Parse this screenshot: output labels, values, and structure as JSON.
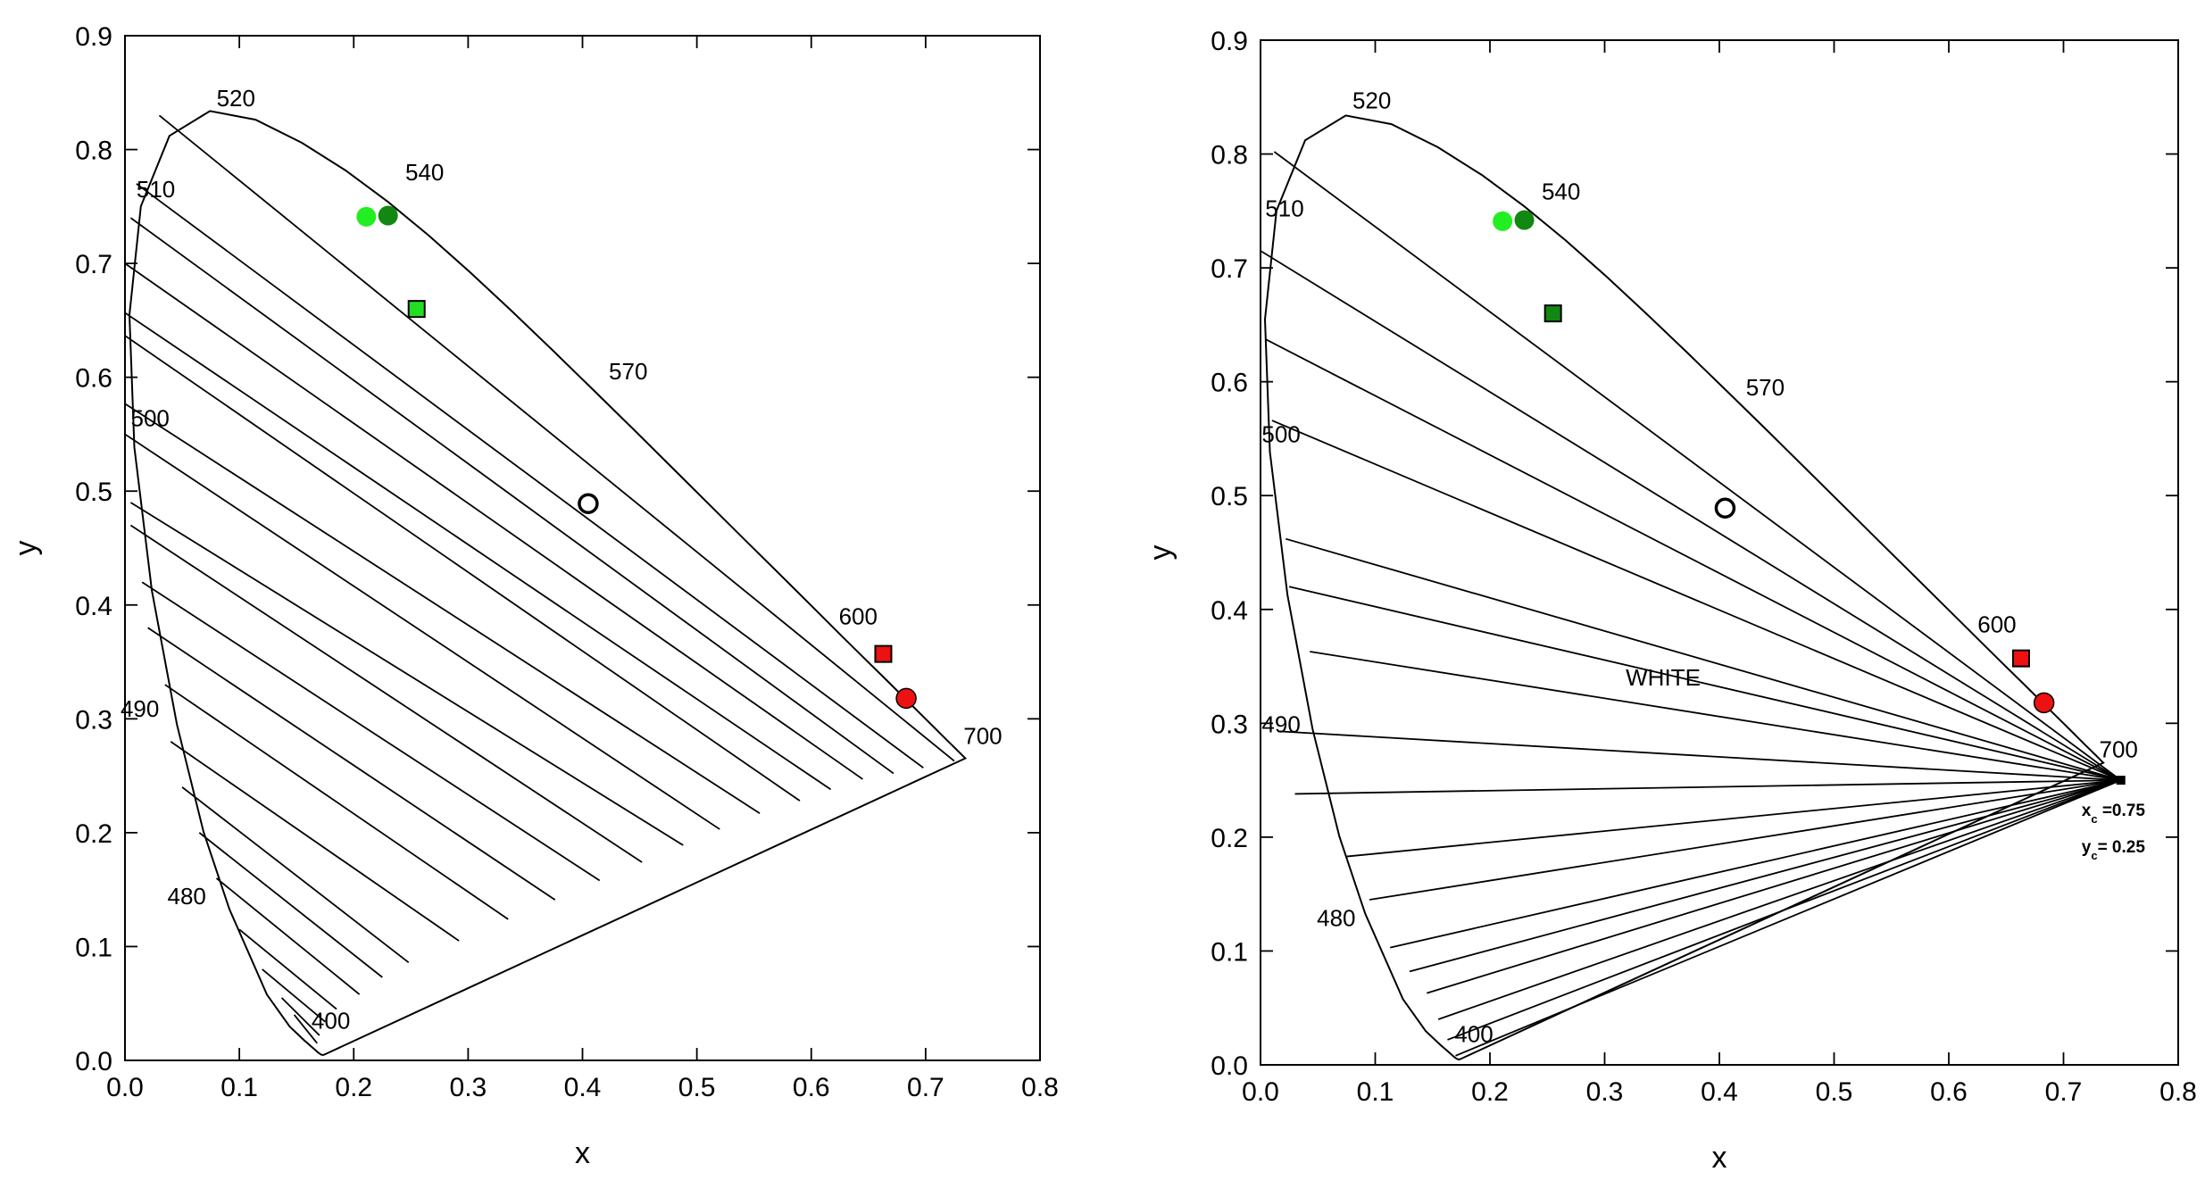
{
  "chart_data": [
    {
      "type": "scatter",
      "xlabel": "x",
      "ylabel": "y",
      "xlim": [
        0.0,
        0.8
      ],
      "ylim": [
        0.0,
        0.9
      ],
      "x_ticks": [
        "0.0",
        "0.1",
        "0.2",
        "0.3",
        "0.4",
        "0.5",
        "0.6",
        "0.7",
        "0.8"
      ],
      "y_ticks": [
        "0.0",
        "0.1",
        "0.2",
        "0.3",
        "0.4",
        "0.5",
        "0.6",
        "0.7",
        "0.8",
        "0.9"
      ],
      "locus": {
        "x": [
          0.1741,
          0.1738,
          0.1733,
          0.1726,
          0.1714,
          0.1689,
          0.1644,
          0.1566,
          0.144,
          0.1241,
          0.0913,
          0.0687,
          0.0454,
          0.0235,
          0.0082,
          0.0039,
          0.0139,
          0.0389,
          0.0743,
          0.1142,
          0.1547,
          0.1929,
          0.2296,
          0.2658,
          0.3016,
          0.3373,
          0.3731,
          0.4087,
          0.4441,
          0.4788,
          0.5125,
          0.5448,
          0.5752,
          0.6029,
          0.627,
          0.6482,
          0.6658,
          0.6801,
          0.6915,
          0.7006,
          0.7079,
          0.714,
          0.719,
          0.723,
          0.726,
          0.7283,
          0.73,
          0.7311,
          0.732,
          0.7327,
          0.7334,
          0.734,
          0.7344,
          0.7346,
          0.7347
        ],
        "y": [
          0.005,
          0.0049,
          0.0048,
          0.0048,
          0.0051,
          0.0069,
          0.0109,
          0.0177,
          0.0297,
          0.0578,
          0.1327,
          0.2007,
          0.295,
          0.4127,
          0.5384,
          0.6548,
          0.7502,
          0.812,
          0.8338,
          0.8262,
          0.8059,
          0.7816,
          0.7543,
          0.7243,
          0.6923,
          0.6589,
          0.6245,
          0.5896,
          0.5547,
          0.5202,
          0.4866,
          0.4544,
          0.4242,
          0.3965,
          0.3725,
          0.3514,
          0.334,
          0.3197,
          0.3083,
          0.2993,
          0.292,
          0.2859,
          0.2809,
          0.277,
          0.274,
          0.2717,
          0.27,
          0.2689,
          0.268,
          0.2673,
          0.2666,
          0.266,
          0.2656,
          0.2654,
          0.2653
        ]
      },
      "wavelength_labels": [
        {
          "text": "520",
          "x": 0.097,
          "y": 0.838
        },
        {
          "text": "540",
          "x": 0.262,
          "y": 0.773
        },
        {
          "text": "510",
          "x": 0.027,
          "y": 0.758
        },
        {
          "text": "570",
          "x": 0.44,
          "y": 0.598
        },
        {
          "text": "500",
          "x": 0.022,
          "y": 0.557
        },
        {
          "text": "600",
          "x": 0.641,
          "y": 0.383
        },
        {
          "text": "490",
          "x": 0.013,
          "y": 0.302
        },
        {
          "text": "700",
          "x": 0.75,
          "y": 0.278
        },
        {
          "text": "480",
          "x": 0.054,
          "y": 0.137
        },
        {
          "text": "400",
          "x": 0.18,
          "y": 0.028
        }
      ],
      "iso_lines": [
        [
          [
            0.03,
            0.83
          ],
          [
            0.725,
            0.263
          ]
        ],
        [
          [
            0.01,
            0.77
          ],
          [
            0.698,
            0.257
          ]
        ],
        [
          [
            0.005,
            0.74
          ],
          [
            0.672,
            0.252
          ]
        ],
        [
          [
            0.0,
            0.7
          ],
          [
            0.645,
            0.247
          ]
        ],
        [
          [
            -0.005,
            0.66
          ],
          [
            0.617,
            0.238
          ]
        ],
        [
          [
            -0.005,
            0.64
          ],
          [
            0.59,
            0.228
          ]
        ],
        [
          [
            -0.005,
            0.58
          ],
          [
            0.555,
            0.217
          ]
        ],
        [
          [
            0.0,
            0.55
          ],
          [
            0.52,
            0.203
          ]
        ],
        [
          [
            0.005,
            0.49
          ],
          [
            0.488,
            0.189
          ]
        ],
        [
          [
            0.005,
            0.47
          ],
          [
            0.452,
            0.174
          ]
        ],
        [
          [
            0.015,
            0.42
          ],
          [
            0.415,
            0.158
          ]
        ],
        [
          [
            0.02,
            0.38
          ],
          [
            0.376,
            0.141
          ]
        ],
        [
          [
            0.035,
            0.33
          ],
          [
            0.335,
            0.124
          ]
        ],
        [
          [
            0.04,
            0.28
          ],
          [
            0.292,
            0.105
          ]
        ],
        [
          [
            0.05,
            0.24
          ],
          [
            0.248,
            0.086
          ]
        ],
        [
          [
            0.065,
            0.2
          ],
          [
            0.225,
            0.073
          ]
        ],
        [
          [
            0.08,
            0.16
          ],
          [
            0.205,
            0.058
          ]
        ],
        [
          [
            0.1,
            0.115
          ],
          [
            0.185,
            0.045
          ]
        ],
        [
          [
            0.12,
            0.08
          ],
          [
            0.175,
            0.034
          ]
        ],
        [
          [
            0.137,
            0.055
          ],
          [
            0.17,
            0.022
          ]
        ],
        [
          [
            0.148,
            0.04
          ],
          [
            0.168,
            0.015
          ]
        ]
      ],
      "points": [
        {
          "shape": "circle",
          "x": 0.211,
          "y": 0.741,
          "color": "#22ee22"
        },
        {
          "shape": "circle",
          "x": 0.23,
          "y": 0.742,
          "color": "#118811"
        },
        {
          "shape": "square",
          "x": 0.255,
          "y": 0.66,
          "color": "#22dd22"
        },
        {
          "shape": "circle-open",
          "x": 0.405,
          "y": 0.489,
          "color": "#ffffff"
        },
        {
          "shape": "square",
          "x": 0.663,
          "y": 0.357,
          "color": "#ee1111"
        },
        {
          "shape": "circle",
          "x": 0.683,
          "y": 0.318,
          "color": "#ee1111"
        }
      ]
    },
    {
      "type": "scatter",
      "xlabel": "x",
      "ylabel": "y",
      "xlim": [
        0.0,
        0.8
      ],
      "ylim": [
        0.0,
        0.9
      ],
      "x_ticks": [
        "0.0",
        "0.1",
        "0.2",
        "0.3",
        "0.4",
        "0.5",
        "0.6",
        "0.7",
        "0.8"
      ],
      "y_ticks": [
        "0.0",
        "0.1",
        "0.2",
        "0.3",
        "0.4",
        "0.5",
        "0.6",
        "0.7",
        "0.8",
        "0.9"
      ],
      "locus": {
        "x": [
          0.1741,
          0.1738,
          0.1733,
          0.1726,
          0.1714,
          0.1689,
          0.1644,
          0.1566,
          0.144,
          0.1241,
          0.0913,
          0.0687,
          0.0454,
          0.0235,
          0.0082,
          0.0039,
          0.0139,
          0.0389,
          0.0743,
          0.1142,
          0.1547,
          0.1929,
          0.2296,
          0.2658,
          0.3016,
          0.3373,
          0.3731,
          0.4087,
          0.4441,
          0.4788,
          0.5125,
          0.5448,
          0.5752,
          0.6029,
          0.627,
          0.6482,
          0.6658,
          0.6801,
          0.6915,
          0.7006,
          0.7079,
          0.714,
          0.719,
          0.723,
          0.726,
          0.7283,
          0.73,
          0.7311,
          0.732,
          0.7327,
          0.7334,
          0.734,
          0.7344,
          0.7346,
          0.7347
        ],
        "y": [
          0.005,
          0.0049,
          0.0048,
          0.0048,
          0.0051,
          0.0069,
          0.0109,
          0.0177,
          0.0297,
          0.0578,
          0.1327,
          0.2007,
          0.295,
          0.4127,
          0.5384,
          0.6548,
          0.7502,
          0.812,
          0.8338,
          0.8262,
          0.8059,
          0.7816,
          0.7543,
          0.7243,
          0.6923,
          0.6589,
          0.6245,
          0.5896,
          0.5547,
          0.5202,
          0.4866,
          0.4544,
          0.4242,
          0.3965,
          0.3725,
          0.3514,
          0.334,
          0.3197,
          0.3083,
          0.2993,
          0.292,
          0.2859,
          0.2809,
          0.277,
          0.274,
          0.2717,
          0.27,
          0.2689,
          0.268,
          0.2673,
          0.2666,
          0.266,
          0.2656,
          0.2654,
          0.2653
        ]
      },
      "wavelength_labels": [
        {
          "text": "520",
          "x": 0.097,
          "y": 0.84
        },
        {
          "text": "540",
          "x": 0.262,
          "y": 0.76
        },
        {
          "text": "510",
          "x": 0.021,
          "y": 0.745
        },
        {
          "text": "570",
          "x": 0.44,
          "y": 0.588
        },
        {
          "text": "500",
          "x": 0.018,
          "y": 0.547
        },
        {
          "text": "600",
          "x": 0.642,
          "y": 0.38
        },
        {
          "text": "490",
          "x": 0.018,
          "y": 0.292
        },
        {
          "text": "700",
          "x": 0.748,
          "y": 0.27
        },
        {
          "text": "480",
          "x": 0.066,
          "y": 0.122
        },
        {
          "text": "400",
          "x": 0.186,
          "y": 0.02
        }
      ],
      "annotation": {
        "text": "WHITE",
        "x": 0.351,
        "y": 0.333
      },
      "convergence": {
        "xc": 0.75,
        "yc": 0.25,
        "xc_label": "x",
        "xc_value": "=0.75",
        "yc_label": "y",
        "yc_value": "= 0.25",
        "sub": "c"
      },
      "pole_lines_from": [
        0.012,
        0.802,
        0.0,
        0.715,
        0.005,
        0.637,
        0.01,
        0.566,
        0.022,
        0.462,
        0.025,
        0.42,
        0.043,
        0.363,
        0.015,
        0.293,
        0.03,
        0.238,
        0.075,
        0.183,
        0.095,
        0.145,
        0.113,
        0.103,
        0.13,
        0.082,
        0.145,
        0.063,
        0.155,
        0.04,
        0.163,
        0.022,
        0.17,
        0.008
      ],
      "points": [
        {
          "shape": "circle",
          "x": 0.211,
          "y": 0.741,
          "color": "#22ee22"
        },
        {
          "shape": "circle",
          "x": 0.23,
          "y": 0.742,
          "color": "#118811"
        },
        {
          "shape": "square",
          "x": 0.255,
          "y": 0.66,
          "color": "#118811"
        },
        {
          "shape": "circle-open",
          "x": 0.405,
          "y": 0.489,
          "color": "#ffffff"
        },
        {
          "shape": "square",
          "x": 0.663,
          "y": 0.357,
          "color": "#ee1111"
        },
        {
          "shape": "circle",
          "x": 0.683,
          "y": 0.318,
          "color": "#ee1111"
        }
      ]
    }
  ]
}
